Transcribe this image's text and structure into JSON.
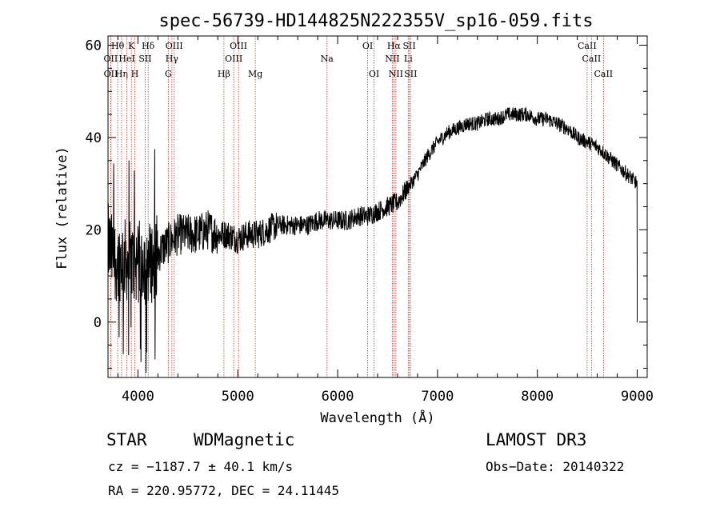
{
  "chart_data": {
    "type": "line",
    "title": "spec-56739-HD144825N222355V_sp16-059.fits",
    "xlabel": "Wavelength (Å)",
    "ylabel": "Flux (relative)",
    "xlim": [
      3700,
      9100
    ],
    "ylim": [
      -12,
      62
    ],
    "xticks": [
      4000,
      5000,
      6000,
      7000,
      8000,
      9000
    ],
    "yticks": [
      0,
      20,
      40,
      60
    ],
    "series": [
      {
        "name": "flux",
        "anchors": [
          [
            3700,
            17
          ],
          [
            3750,
            14
          ],
          [
            3800,
            13
          ],
          [
            3850,
            14
          ],
          [
            3900,
            13
          ],
          [
            3950,
            13
          ],
          [
            4000,
            13
          ],
          [
            4050,
            14
          ],
          [
            4100,
            13
          ],
          [
            4150,
            13
          ],
          [
            4200,
            15
          ],
          [
            4300,
            17
          ],
          [
            4400,
            19
          ],
          [
            4500,
            19
          ],
          [
            4600,
            19
          ],
          [
            4700,
            20
          ],
          [
            4800,
            19
          ],
          [
            4900,
            19
          ],
          [
            5000,
            18
          ],
          [
            5100,
            19
          ],
          [
            5200,
            19
          ],
          [
            5300,
            20
          ],
          [
            5400,
            21
          ],
          [
            5500,
            21
          ],
          [
            5600,
            21
          ],
          [
            5700,
            21
          ],
          [
            5800,
            22
          ],
          [
            5900,
            22
          ],
          [
            6000,
            22
          ],
          [
            6100,
            22
          ],
          [
            6200,
            23
          ],
          [
            6300,
            23
          ],
          [
            6400,
            24
          ],
          [
            6500,
            25
          ],
          [
            6600,
            26
          ],
          [
            6700,
            29
          ],
          [
            6800,
            32
          ],
          [
            6900,
            36
          ],
          [
            7000,
            39
          ],
          [
            7100,
            41
          ],
          [
            7200,
            42
          ],
          [
            7300,
            43
          ],
          [
            7400,
            43
          ],
          [
            7500,
            44
          ],
          [
            7600,
            44
          ],
          [
            7700,
            45
          ],
          [
            7800,
            45
          ],
          [
            7900,
            45
          ],
          [
            8000,
            44
          ],
          [
            8100,
            44
          ],
          [
            8200,
            43
          ],
          [
            8300,
            42
          ],
          [
            8400,
            40
          ],
          [
            8500,
            39
          ],
          [
            8600,
            38
          ],
          [
            8700,
            36
          ],
          [
            8800,
            34
          ],
          [
            8900,
            32
          ],
          [
            9000,
            30
          ]
        ]
      }
    ],
    "spectral_lines": [
      {
        "x": 3727,
        "label": "OII",
        "row": 2
      },
      {
        "x": 3728,
        "label": "OII",
        "row": 3
      },
      {
        "x": 3797,
        "label": "Hθ",
        "row": 1
      },
      {
        "x": 3835,
        "label": "Hη",
        "row": 3
      },
      {
        "x": 3889,
        "label": "HeI",
        "row": 2
      },
      {
        "x": 3934,
        "label": "K",
        "row": 1
      },
      {
        "x": 3969,
        "label": "H",
        "row": 3
      },
      {
        "x": 4072,
        "label": "SII",
        "row": 2
      },
      {
        "x": 4102,
        "label": "Hδ",
        "row": 1
      },
      {
        "x": 4304,
        "label": "G",
        "row": 3
      },
      {
        "x": 4340,
        "label": "Hγ",
        "row": 2
      },
      {
        "x": 4363,
        "label": "OIII",
        "row": 1
      },
      {
        "x": 4861,
        "label": "Hβ",
        "row": 3
      },
      {
        "x": 4959,
        "label": "OIII",
        "row": 2
      },
      {
        "x": 5007,
        "label": "OIII",
        "row": 1
      },
      {
        "x": 5175,
        "label": "Mg",
        "row": 3
      },
      {
        "x": 5893,
        "label": "Na",
        "row": 2
      },
      {
        "x": 6300,
        "label": "OI",
        "row": 1
      },
      {
        "x": 6364,
        "label": "OI",
        "row": 3
      },
      {
        "x": 6548,
        "label": "NII",
        "row": 2
      },
      {
        "x": 6563,
        "label": "Hα",
        "row": 1
      },
      {
        "x": 6583,
        "label": "NII",
        "row": 3
      },
      {
        "x": 6707,
        "label": "Li",
        "row": 2
      },
      {
        "x": 6717,
        "label": "SII",
        "row": 1
      },
      {
        "x": 6731,
        "label": "SII",
        "row": 3
      },
      {
        "x": 8498,
        "label": "CaII",
        "row": 1
      },
      {
        "x": 8542,
        "label": "CaII",
        "row": 2
      },
      {
        "x": 8662,
        "label": "CaII",
        "row": 3
      }
    ]
  },
  "info": {
    "class": "STAR",
    "subclass": "WDMagnetic",
    "survey": "LAMOST DR3",
    "cz": "cz = −1187.7 ± 40.1 km/s",
    "obs_date": "Obs−Date: 20140322",
    "coords": "RA = 220.95772, DEC =  24.11445"
  },
  "colors": {
    "line_markers": "#c0392b",
    "spectrum": "#000000",
    "axes": "#000000"
  }
}
